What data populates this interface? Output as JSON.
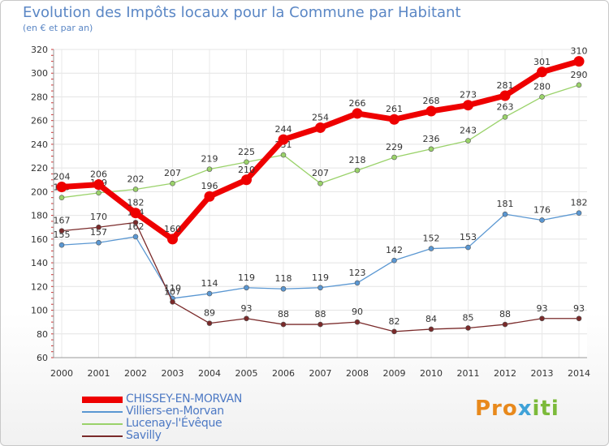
{
  "title": "Evolution des Impôts locaux pour la Commune par Habitant",
  "subtitle": "(en € et par an)",
  "logo": {
    "parts": [
      "Pro",
      "x",
      "iti"
    ]
  },
  "chart_data": {
    "type": "line",
    "x": [
      "2000",
      "2001",
      "2002",
      "2003",
      "2004",
      "2005",
      "2006",
      "2007",
      "2008",
      "2009",
      "2010",
      "2011",
      "2012",
      "2013",
      "2014"
    ],
    "ylim": [
      60,
      320
    ],
    "yticks": [
      60,
      80,
      100,
      120,
      140,
      160,
      180,
      200,
      220,
      240,
      260,
      280,
      300,
      320
    ],
    "grid": true,
    "legend_position": "bottom-left",
    "series": [
      {
        "name": "CHISSEY-EN-MORVAN",
        "color": "#ee0000",
        "bold": true,
        "values": [
          204,
          206,
          182,
          160,
          196,
          210,
          244,
          254,
          266,
          261,
          268,
          273,
          281,
          301,
          310
        ]
      },
      {
        "name": "Villiers-en-Morvan",
        "color": "#5a97d2",
        "bold": false,
        "values": [
          155,
          157,
          162,
          110,
          114,
          119,
          118,
          119,
          123,
          142,
          152,
          153,
          181,
          176,
          182
        ]
      },
      {
        "name": "Lucenay-l'Évêque",
        "color": "#9ad26a",
        "bold": false,
        "values": [
          195,
          199,
          202,
          207,
          219,
          225,
          231,
          207,
          218,
          229,
          236,
          243,
          263,
          280,
          290
        ]
      },
      {
        "name": "Savilly",
        "color": "#7a2a2a",
        "bold": false,
        "values": [
          167,
          170,
          174,
          107,
          89,
          93,
          88,
          88,
          90,
          82,
          84,
          85,
          88,
          93,
          93
        ]
      }
    ]
  }
}
